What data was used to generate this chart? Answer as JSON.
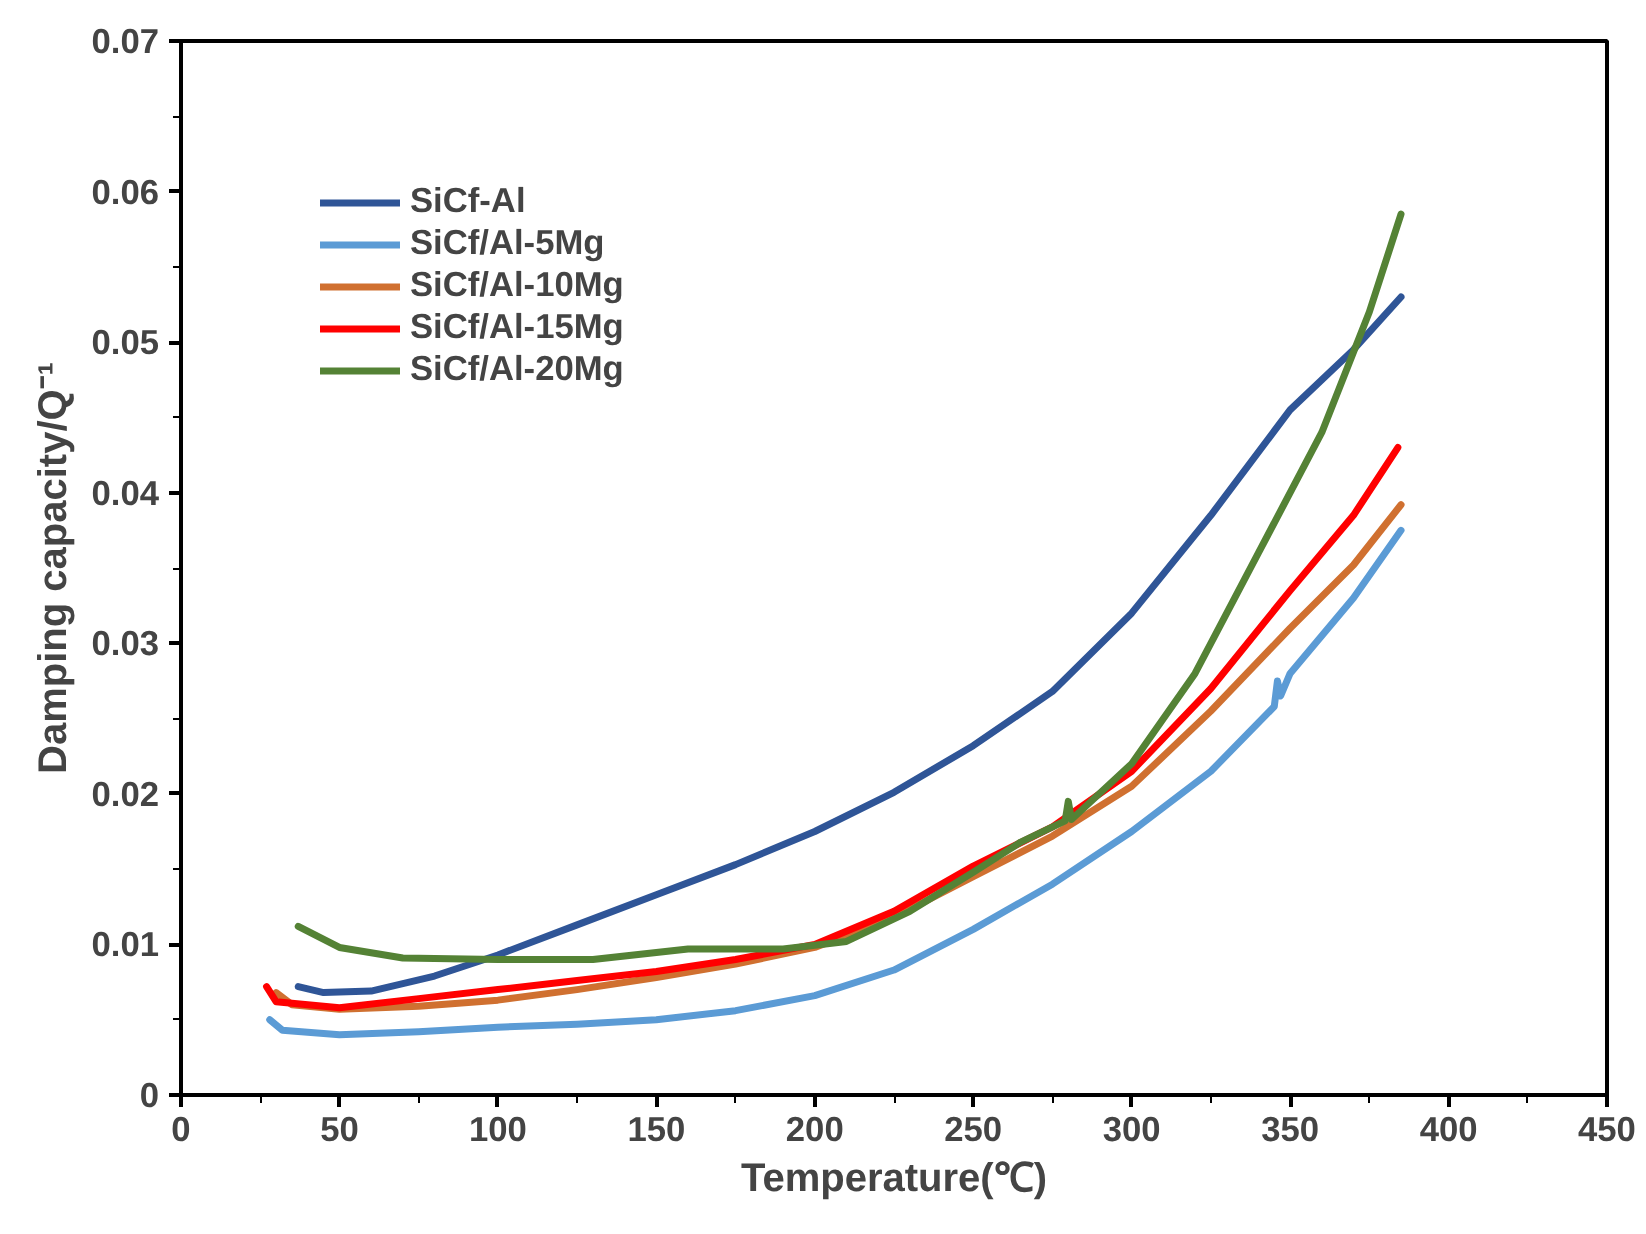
{
  "chart_data": {
    "type": "line",
    "xlabel": "Temperature(℃)",
    "ylabel": "Damping capacity/Q⁻¹",
    "xlim": [
      0,
      450
    ],
    "ylim": [
      0,
      0.07
    ],
    "xticks": [
      0,
      50,
      100,
      150,
      200,
      250,
      300,
      350,
      400,
      450
    ],
    "yticks": [
      {
        "value": 0,
        "label": "0"
      },
      {
        "value": 0.01,
        "label": "0.01"
      },
      {
        "value": 0.02,
        "label": "0.02"
      },
      {
        "value": 0.03,
        "label": "0.03"
      },
      {
        "value": 0.04,
        "label": "0.04"
      },
      {
        "value": 0.05,
        "label": "0.05"
      },
      {
        "value": 0.06,
        "label": "0.06"
      },
      {
        "value": 0.07,
        "label": "0.07"
      }
    ],
    "grid": false,
    "legend": "top left",
    "marker": "none",
    "line_style": "solid",
    "series": [
      {
        "name": "SiCf-Al",
        "color": "#2f5597",
        "x": [
          37,
          45,
          60,
          80,
          100,
          125,
          150,
          175,
          200,
          225,
          250,
          275,
          300,
          325,
          350,
          370,
          385
        ],
        "values": [
          0.0072,
          0.0068,
          0.0069,
          0.0079,
          0.0093,
          0.0113,
          0.0133,
          0.0153,
          0.0175,
          0.0201,
          0.0232,
          0.0268,
          0.032,
          0.0385,
          0.0455,
          0.0495,
          0.053
        ]
      },
      {
        "name": "SiCf/Al-5Mg",
        "color": "#5b9bd5",
        "x": [
          28,
          32,
          50,
          75,
          100,
          125,
          150,
          175,
          200,
          225,
          250,
          275,
          300,
          325,
          345,
          346,
          347,
          350,
          370,
          385
        ],
        "values": [
          0.005,
          0.0043,
          0.004,
          0.0042,
          0.0045,
          0.0047,
          0.005,
          0.0056,
          0.0066,
          0.0083,
          0.011,
          0.014,
          0.0175,
          0.0215,
          0.0258,
          0.0275,
          0.0265,
          0.028,
          0.033,
          0.0375
        ]
      },
      {
        "name": "SiCf/Al-10Mg",
        "color": "#d07030",
        "x": [
          30,
          35,
          50,
          75,
          100,
          125,
          150,
          175,
          200,
          225,
          250,
          275,
          300,
          325,
          350,
          370,
          385
        ],
        "values": [
          0.0068,
          0.006,
          0.0057,
          0.0059,
          0.0063,
          0.007,
          0.0078,
          0.0087,
          0.0098,
          0.0118,
          0.0145,
          0.0172,
          0.0205,
          0.0255,
          0.031,
          0.0352,
          0.0392
        ]
      },
      {
        "name": "SiCf/Al-15Mg",
        "color": "#ff0000",
        "x": [
          27,
          30,
          50,
          75,
          100,
          125,
          150,
          175,
          200,
          225,
          250,
          275,
          300,
          325,
          350,
          370,
          384
        ],
        "values": [
          0.0072,
          0.0062,
          0.0058,
          0.0064,
          0.007,
          0.0076,
          0.0082,
          0.009,
          0.01,
          0.0122,
          0.0152,
          0.0178,
          0.0215,
          0.027,
          0.0335,
          0.0385,
          0.043
        ]
      },
      {
        "name": "SiCf/Al-20Mg",
        "color": "#548235",
        "x": [
          37,
          50,
          70,
          100,
          130,
          160,
          190,
          210,
          230,
          250,
          265,
          279,
          280,
          281,
          300,
          320,
          340,
          360,
          375,
          385
        ],
        "values": [
          0.0112,
          0.0098,
          0.0091,
          0.009,
          0.009,
          0.0097,
          0.0097,
          0.0102,
          0.0122,
          0.0148,
          0.0168,
          0.0182,
          0.0195,
          0.0183,
          0.022,
          0.028,
          0.036,
          0.044,
          0.052,
          0.0585
        ]
      }
    ]
  }
}
